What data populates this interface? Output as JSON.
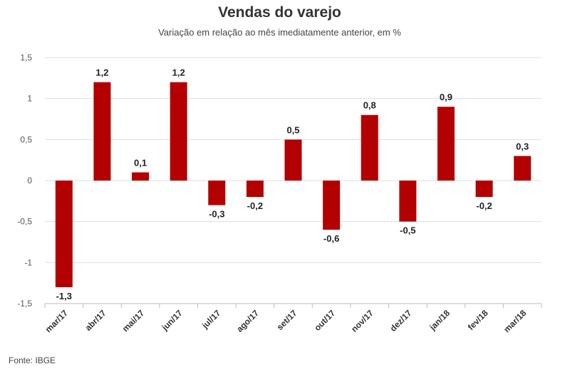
{
  "chart_data": {
    "type": "bar",
    "title": "Vendas do varejo",
    "subtitle": "Variação em relação ao mês imediatamente anterior, em %",
    "categories": [
      "mar/17",
      "abr/17",
      "mai/17",
      "jun/17",
      "jul/17",
      "ago/17",
      "set/17",
      "out/17",
      "nov/17",
      "dez/17",
      "jan/18",
      "fev/18",
      "mar/18"
    ],
    "values": [
      -1.3,
      1.2,
      0.1,
      1.2,
      -0.3,
      -0.2,
      0.5,
      -0.6,
      0.8,
      -0.5,
      0.9,
      -0.2,
      0.3
    ],
    "data_labels": [
      "-1,3",
      "1,2",
      "0,1",
      "1,2",
      "-0,3",
      "-0,2",
      "0,5",
      "-0,6",
      "0,8",
      "-0,5",
      "0,9",
      "-0,2",
      "0,3"
    ],
    "ylim": [
      -1.5,
      1.5
    ],
    "yticks": [
      1.5,
      1,
      0.5,
      0,
      -0.5,
      -1,
      -1.5
    ],
    "ytick_labels": [
      "1,5",
      "1",
      "0,5",
      "0",
      "-0,5",
      "-1",
      "-1,5"
    ],
    "grid": true,
    "bar_color": "#b30000",
    "source": "Fonte: IBGE"
  }
}
